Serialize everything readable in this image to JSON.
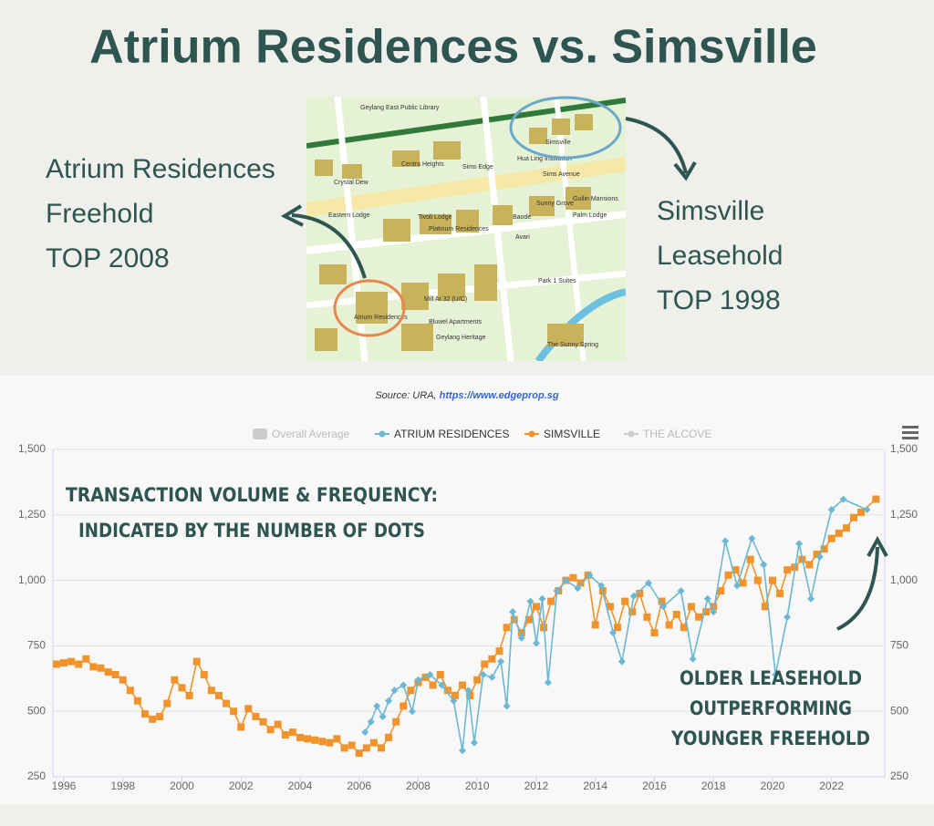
{
  "header": {
    "title": "Atrium Residences vs. Simsville"
  },
  "left_panel": {
    "lines": [
      "Atrium Residences",
      "Freehold",
      "TOP 2008"
    ]
  },
  "right_panel": {
    "lines": [
      "Simsville",
      "Leasehold",
      "TOP 1998"
    ]
  },
  "map": {
    "labels": [
      "Geylang East Public Library",
      "Simsville",
      "Atrium Residences",
      "Sims Avenue",
      "Hua Ling Institution",
      "Centra Heights",
      "Sims Edge",
      "Eastern Lodge",
      "Platinum Residences",
      "Park 1 Suites",
      "The Sunny Spring",
      "Bluwel Apartments",
      "Mill At 32 (U/C)",
      "Avari",
      "Guilin Mansions",
      "Sunny Grove",
      "Palm Lodge",
      "Geylang Heritage",
      "Crystal Dew",
      "Tivoli Lodge",
      "Baode"
    ]
  },
  "source": {
    "prefix": "Source: URA,",
    "link": "https://www.edgeprop.sg"
  },
  "chart_data": {
    "type": "line",
    "legend_extra": [
      {
        "name": "Overall Average",
        "color": "#cccccc"
      },
      {
        "name": "THE ALCOVE",
        "color": "#cccccc"
      }
    ],
    "annotations": [
      "TRANSACTION VOLUME & FREQUENCY:",
      "INDICATED BY THE NUMBER OF DOTS",
      "OLDER LEASEHOLD",
      "OUTPERFORMING",
      "YOUNGER FREEHOLD"
    ],
    "xlim": [
      1995.63,
      2023.8
    ],
    "xticks": [
      1996,
      1998,
      2000,
      2002,
      2004,
      2006,
      2008,
      2010,
      2012,
      2014,
      2016,
      2018,
      2020,
      2022
    ],
    "ylim": [
      250,
      1500
    ],
    "yticks": [
      250,
      500,
      750,
      {
        "value": 1000,
        "label": "1,000"
      },
      {
        "value": 1250,
        "label": "1,250"
      },
      {
        "value": 1500,
        "label": "1,500"
      }
    ],
    "y2lim": [
      250,
      1500
    ],
    "y2ticks": [
      250,
      500,
      750,
      {
        "value": 1000,
        "label": "1,000"
      },
      {
        "value": 1250,
        "label": "1,250"
      },
      {
        "value": 1500,
        "label": "1,500"
      }
    ],
    "grid": true,
    "series": [
      {
        "name": "ATRIUM RESIDENCES",
        "color": "#6bb8d4",
        "marker": "diamond",
        "x": [
          2006.2,
          2006.4,
          2006.6,
          2006.8,
          2007.0,
          2007.2,
          2007.5,
          2007.8,
          2008.0,
          2008.4,
          2008.8,
          2009.2,
          2009.5,
          2009.7,
          2009.9,
          2010.2,
          2010.5,
          2010.8,
          2011.0,
          2011.2,
          2011.5,
          2011.8,
          2012.0,
          2012.2,
          2012.4,
          2012.7,
          2013.0,
          2013.4,
          2013.8,
          2014.2,
          2014.6,
          2014.9,
          2015.3,
          2015.8,
          2016.3,
          2016.9,
          2017.3,
          2017.8,
          2018.0,
          2018.4,
          2018.8,
          2019.3,
          2019.7,
          2020.1,
          2020.5,
          2020.9,
          2021.3,
          2021.6,
          2022.0,
          2022.4,
          2023.2
        ],
        "values": [
          420,
          460,
          520,
          480,
          540,
          580,
          600,
          500,
          620,
          640,
          600,
          540,
          350,
          580,
          380,
          640,
          630,
          690,
          520,
          880,
          780,
          920,
          760,
          930,
          610,
          960,
          1000,
          970,
          1020,
          980,
          800,
          690,
          940,
          990,
          900,
          960,
          700,
          930,
          880,
          1150,
          980,
          1160,
          1060,
          640,
          860,
          1140,
          930,
          1090,
          1270,
          1310,
          1270
        ]
      },
      {
        "name": "SIMSVILLE",
        "color": "#f0932b",
        "marker": "square",
        "x": [
          1995.75,
          1996.0,
          1996.25,
          1996.5,
          1996.75,
          1997.0,
          1997.25,
          1997.5,
          1997.75,
          1998.0,
          1998.25,
          1998.5,
          1998.75,
          1999.0,
          1999.25,
          1999.5,
          1999.75,
          2000.0,
          2000.25,
          2000.5,
          2000.75,
          2001.0,
          2001.25,
          2001.5,
          2001.75,
          2002.0,
          2002.25,
          2002.5,
          2002.75,
          2003.0,
          2003.25,
          2003.5,
          2003.75,
          2004.0,
          2004.25,
          2004.5,
          2004.75,
          2005.0,
          2005.25,
          2005.5,
          2005.75,
          2006.0,
          2006.25,
          2006.5,
          2006.75,
          2007.0,
          2007.25,
          2007.5,
          2007.75,
          2008.0,
          2008.25,
          2008.5,
          2008.75,
          2009.0,
          2009.25,
          2009.5,
          2009.75,
          2010.0,
          2010.25,
          2010.5,
          2010.75,
          2011.0,
          2011.25,
          2011.5,
          2011.75,
          2012.0,
          2012.25,
          2012.5,
          2012.75,
          2013.0,
          2013.25,
          2013.5,
          2013.75,
          2014.0,
          2014.25,
          2014.5,
          2014.75,
          2015.0,
          2015.25,
          2015.5,
          2015.75,
          2016.0,
          2016.25,
          2016.5,
          2016.75,
          2017.0,
          2017.25,
          2017.5,
          2017.75,
          2018.0,
          2018.25,
          2018.5,
          2018.75,
          2019.0,
          2019.25,
          2019.5,
          2019.75,
          2020.0,
          2020.25,
          2020.5,
          2020.75,
          2021.0,
          2021.25,
          2021.5,
          2021.75,
          2022.0,
          2022.25,
          2022.5,
          2022.75,
          2023.0,
          2023.5
        ],
        "values": [
          680,
          685,
          690,
          680,
          700,
          670,
          665,
          650,
          640,
          620,
          580,
          540,
          490,
          470,
          480,
          530,
          620,
          590,
          560,
          690,
          640,
          580,
          560,
          530,
          500,
          440,
          510,
          480,
          460,
          430,
          450,
          410,
          420,
          400,
          395,
          390,
          385,
          380,
          395,
          360,
          370,
          340,
          360,
          380,
          360,
          400,
          460,
          520,
          580,
          610,
          630,
          600,
          640,
          580,
          560,
          600,
          560,
          620,
          680,
          700,
          730,
          820,
          850,
          800,
          850,
          900,
          820,
          920,
          960,
          1000,
          1010,
          990,
          1020,
          830,
          960,
          900,
          820,
          920,
          880,
          950,
          860,
          800,
          920,
          830,
          870,
          820,
          900,
          860,
          880,
          900,
          960,
          1020,
          1040,
          990,
          1080,
          1000,
          900,
          1000,
          950,
          1040,
          1050,
          1080,
          1060,
          1100,
          1120,
          1160,
          1180,
          1200,
          1240,
          1260,
          1310
        ]
      }
    ]
  }
}
